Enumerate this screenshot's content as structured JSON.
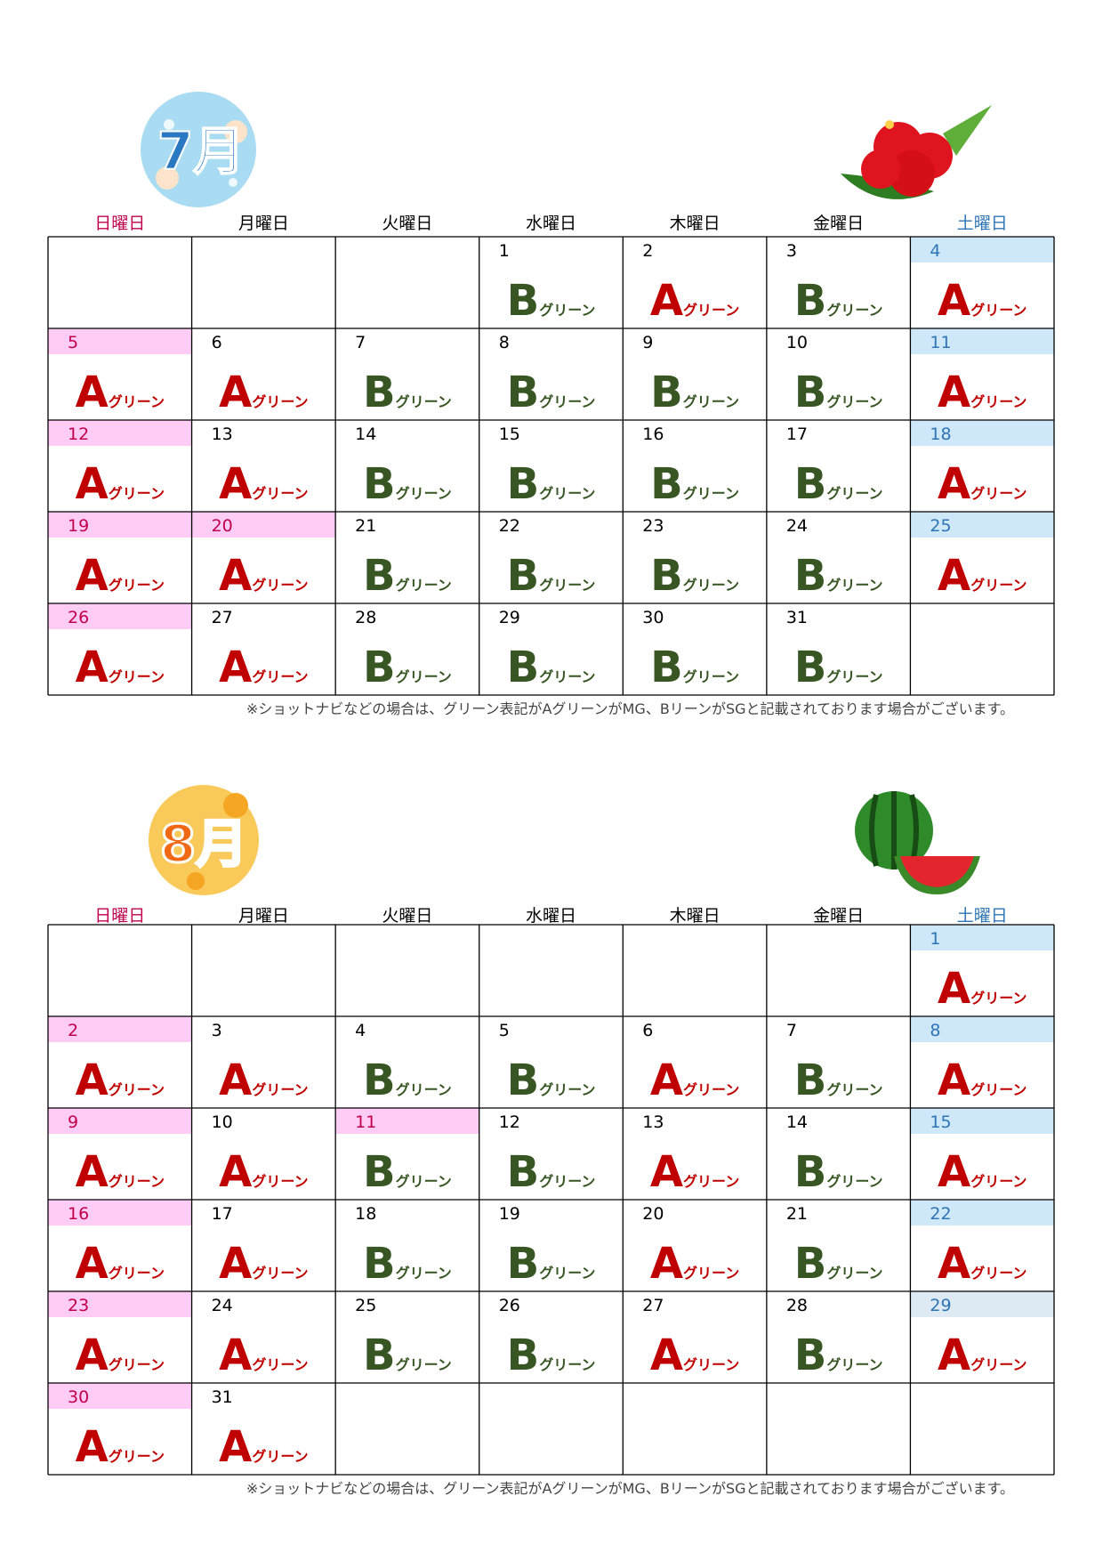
{
  "green_suffix": "グリーン",
  "letter_colors": {
    "A": "#c00000",
    "B": "#375623"
  },
  "day_colors": {
    "#ffccf5": "#c0004f",
    "#cfe8f9": "#2e75b6",
    "#dde9f3": "#2e75b6"
  },
  "weekday_colors": [
    "#c0004f",
    "#000000",
    "#000000",
    "#000000",
    "#000000",
    "#000000",
    "#2e75b6"
  ],
  "months": [
    {
      "label": "7月",
      "weekdays": [
        "日曜日",
        "月曜日",
        "火曜日",
        "水曜日",
        "木曜日",
        "金曜日",
        "土曜日"
      ],
      "rows": [
        [
          null,
          null,
          null,
          {
            "d": "1",
            "g": "B"
          },
          {
            "d": "2",
            "g": "A"
          },
          {
            "d": "3",
            "g": "B"
          },
          {
            "d": "4",
            "g": "A",
            "band": "#cfe8f9"
          }
        ],
        [
          {
            "d": "5",
            "g": "A",
            "band": "#ffccf5"
          },
          {
            "d": "6",
            "g": "A"
          },
          {
            "d": "7",
            "g": "B"
          },
          {
            "d": "8",
            "g": "B"
          },
          {
            "d": "9",
            "g": "B"
          },
          {
            "d": "10",
            "g": "B"
          },
          {
            "d": "11",
            "g": "A",
            "band": "#cfe8f9"
          }
        ],
        [
          {
            "d": "12",
            "g": "A",
            "band": "#ffccf5"
          },
          {
            "d": "13",
            "g": "A"
          },
          {
            "d": "14",
            "g": "B"
          },
          {
            "d": "15",
            "g": "B"
          },
          {
            "d": "16",
            "g": "B"
          },
          {
            "d": "17",
            "g": "B"
          },
          {
            "d": "18",
            "g": "A",
            "band": "#cfe8f9"
          }
        ],
        [
          {
            "d": "19",
            "g": "A",
            "band": "#ffccf5"
          },
          {
            "d": "20",
            "g": "A",
            "band": "#ffccf5"
          },
          {
            "d": "21",
            "g": "B"
          },
          {
            "d": "22",
            "g": "B"
          },
          {
            "d": "23",
            "g": "B"
          },
          {
            "d": "24",
            "g": "B"
          },
          {
            "d": "25",
            "g": "A",
            "band": "#cfe8f9"
          }
        ],
        [
          {
            "d": "26",
            "g": "A",
            "band": "#ffccf5"
          },
          {
            "d": "27",
            "g": "A"
          },
          {
            "d": "28",
            "g": "B"
          },
          {
            "d": "29",
            "g": "B"
          },
          {
            "d": "30",
            "g": "B"
          },
          {
            "d": "31",
            "g": "B"
          },
          null
        ]
      ],
      "note": "※ショットナビなどの場合は、グリーン表記がAグリーンがMG、BリーンがSGと記載されております場合がございます。"
    },
    {
      "label": "8月",
      "weekdays": [
        "日曜日",
        "月曜日",
        "火曜日",
        "水曜日",
        "木曜日",
        "金曜日",
        "土曜日"
      ],
      "rows": [
        [
          null,
          null,
          null,
          null,
          null,
          null,
          {
            "d": "1",
            "g": "A",
            "band": "#cfe8f9"
          }
        ],
        [
          {
            "d": "2",
            "g": "A",
            "band": "#ffccf5"
          },
          {
            "d": "3",
            "g": "A"
          },
          {
            "d": "4",
            "g": "B"
          },
          {
            "d": "5",
            "g": "B"
          },
          {
            "d": "6",
            "g": "A"
          },
          {
            "d": "7",
            "g": "B"
          },
          {
            "d": "8",
            "g": "A",
            "band": "#cfe8f9"
          }
        ],
        [
          {
            "d": "9",
            "g": "A",
            "band": "#ffccf5"
          },
          {
            "d": "10",
            "g": "A"
          },
          {
            "d": "11",
            "g": "B",
            "band": "#ffccf5"
          },
          {
            "d": "12",
            "g": "B"
          },
          {
            "d": "13",
            "g": "A"
          },
          {
            "d": "14",
            "g": "B"
          },
          {
            "d": "15",
            "g": "A",
            "band": "#cfe8f9"
          }
        ],
        [
          {
            "d": "16",
            "g": "A",
            "band": "#ffccf5"
          },
          {
            "d": "17",
            "g": "A"
          },
          {
            "d": "18",
            "g": "B"
          },
          {
            "d": "19",
            "g": "B"
          },
          {
            "d": "20",
            "g": "A"
          },
          {
            "d": "21",
            "g": "B"
          },
          {
            "d": "22",
            "g": "A",
            "band": "#cfe8f9"
          }
        ],
        [
          {
            "d": "23",
            "g": "A",
            "band": "#ffccf5"
          },
          {
            "d": "24",
            "g": "A"
          },
          {
            "d": "25",
            "g": "B"
          },
          {
            "d": "26",
            "g": "B"
          },
          {
            "d": "27",
            "g": "A"
          },
          {
            "d": "28",
            "g": "B"
          },
          {
            "d": "29",
            "g": "A",
            "band": "#dde9f3"
          }
        ],
        [
          {
            "d": "30",
            "g": "A",
            "band": "#ffccf5"
          },
          {
            "d": "31",
            "g": "A"
          },
          null,
          null,
          null,
          null,
          null
        ]
      ],
      "note": "※ショットナビなどの場合は、グリーン表記がAグリーンがMG、BリーンがSGと記載されております場合がございます。"
    }
  ]
}
